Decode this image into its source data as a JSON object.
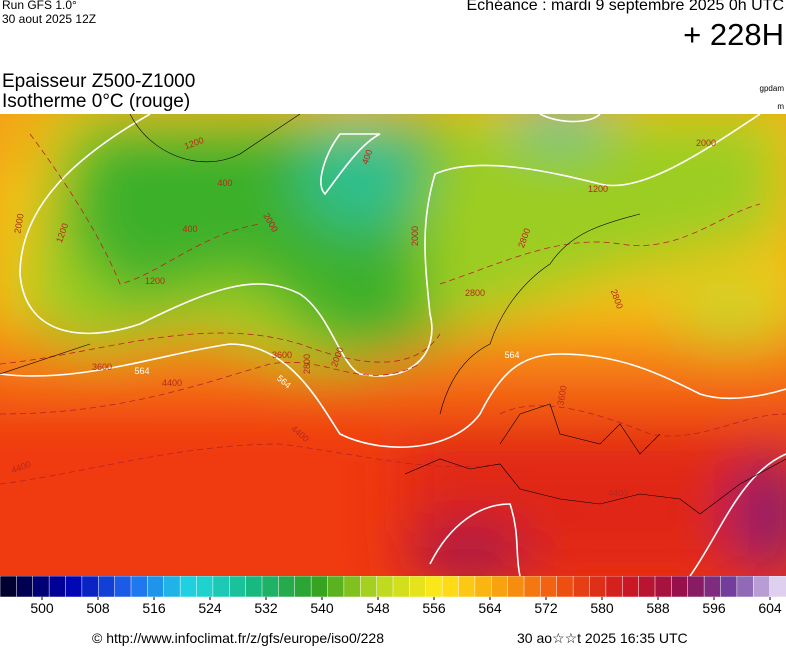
{
  "header": {
    "run": "Run GFS 1.0°",
    "run_date": "30 aout 2025 12Z",
    "valid": "Echéance : mardi 9 septembre 2025 0h UTC",
    "lead": "+ 228H"
  },
  "title": {
    "line1": "Epaisseur Z500-Z1000",
    "line2": "Isotherme 0°C (rouge)"
  },
  "units": {
    "thickness": "gpdam",
    "isotherm": "m"
  },
  "map_labels": [
    "1200",
    "400",
    "2000",
    "1200",
    "1200",
    "2000",
    "400",
    "400",
    "1200",
    "2000",
    "2800",
    "2800",
    "2000",
    "2800",
    "2800",
    "3600",
    "564",
    "4400",
    "564",
    "3600",
    "4400",
    "4400",
    "3600",
    "564",
    "4400",
    "2000"
  ],
  "colorbar": {
    "ticks": [
      500,
      508,
      516,
      524,
      532,
      540,
      548,
      556,
      564,
      572,
      580,
      588,
      596,
      604
    ]
  },
  "footer": {
    "source": "© http://www.infoclimat.fr/z/gfs/europe/iso0/228",
    "generated": "30 ao☆☆t 2025 16:35 UTC"
  }
}
